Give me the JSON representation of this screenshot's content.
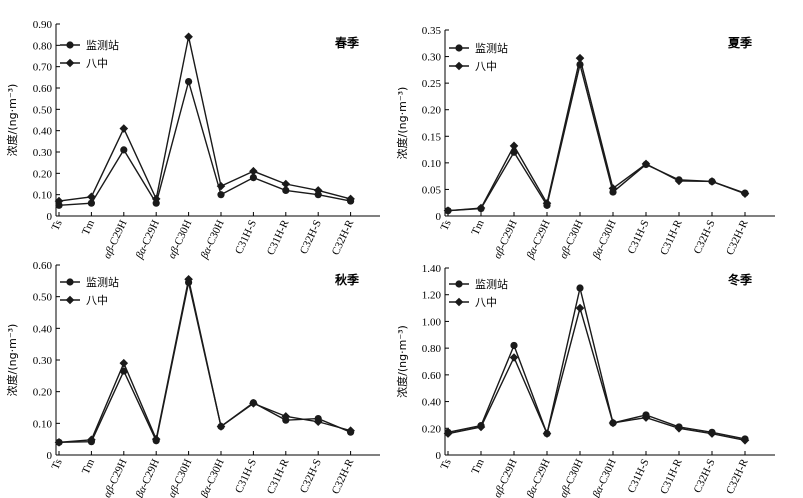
{
  "chart_data": [
    {
      "type": "line",
      "title": "春季",
      "ylabel": "浓度/(ng·m⁻³)",
      "ylim": [
        0,
        0.9
      ],
      "yticks": [
        "0",
        "0.10",
        "0.20",
        "0.30",
        "0.40",
        "0.50",
        "0.60",
        "0.70",
        "0.80",
        "0.90"
      ],
      "categories": [
        {
          "prefix": "",
          "rest": "Ts"
        },
        {
          "prefix": "",
          "rest": "Tm"
        },
        {
          "prefix": "αβ",
          "rest": "-C29H"
        },
        {
          "prefix": "βα",
          "rest": "-C29H"
        },
        {
          "prefix": "αβ",
          "rest": "-C30H"
        },
        {
          "prefix": "βα",
          "rest": "-C30H"
        },
        {
          "prefix": "",
          "rest": "C31H-S"
        },
        {
          "prefix": "",
          "rest": "C31H-R"
        },
        {
          "prefix": "",
          "rest": "C32H-S"
        },
        {
          "prefix": "",
          "rest": "C32H-R"
        }
      ],
      "series": [
        {
          "name": "监测站",
          "marker": "circle",
          "values": [
            0.05,
            0.06,
            0.31,
            0.06,
            0.63,
            0.1,
            0.18,
            0.12,
            0.1,
            0.07
          ]
        },
        {
          "name": "八中",
          "marker": "diamond",
          "values": [
            0.07,
            0.09,
            0.41,
            0.08,
            0.84,
            0.14,
            0.21,
            0.15,
            0.12,
            0.08
          ]
        }
      ]
    },
    {
      "type": "line",
      "title": "夏季",
      "ylabel": "浓度/(ng·m⁻³)",
      "ylim": [
        0,
        0.35
      ],
      "yticks": [
        "0",
        "0.05",
        "0.10",
        "0.15",
        "0.20",
        "0.25",
        "0.30",
        "0.35"
      ],
      "categories": [
        {
          "prefix": "",
          "rest": "Ts"
        },
        {
          "prefix": "",
          "rest": "Tm"
        },
        {
          "prefix": "αβ",
          "rest": "-C29H"
        },
        {
          "prefix": "βα",
          "rest": "-C29H"
        },
        {
          "prefix": "αβ",
          "rest": "-C30H"
        },
        {
          "prefix": "βα",
          "rest": "-C30H"
        },
        {
          "prefix": "",
          "rest": "C31H-S"
        },
        {
          "prefix": "",
          "rest": "C31H-R"
        },
        {
          "prefix": "",
          "rest": "C32H-S"
        },
        {
          "prefix": "",
          "rest": "C32H-R"
        }
      ],
      "series": [
        {
          "name": "监测站",
          "marker": "circle",
          "values": [
            0.01,
            0.014,
            0.12,
            0.02,
            0.285,
            0.045,
            0.097,
            0.068,
            0.065,
            0.043
          ]
        },
        {
          "name": "八中",
          "marker": "diamond",
          "values": [
            0.01,
            0.015,
            0.132,
            0.024,
            0.297,
            0.052,
            0.098,
            0.066,
            0.065,
            0.042
          ]
        }
      ]
    },
    {
      "type": "line",
      "title": "秋季",
      "ylabel": "浓度/(ng·m⁻³)",
      "ylim": [
        0,
        0.6
      ],
      "yticks": [
        "0",
        "0.10",
        "0.20",
        "0.30",
        "0.40",
        "0.50",
        "0.60"
      ],
      "categories": [
        {
          "prefix": "",
          "rest": "Ts"
        },
        {
          "prefix": "",
          "rest": "Tm"
        },
        {
          "prefix": "αβ",
          "rest": "-C29H"
        },
        {
          "prefix": "βα",
          "rest": "-C29H"
        },
        {
          "prefix": "αβ",
          "rest": "-C30H"
        },
        {
          "prefix": "βα",
          "rest": "-C30H"
        },
        {
          "prefix": "",
          "rest": "C31H-S"
        },
        {
          "prefix": "",
          "rest": "C31H-R"
        },
        {
          "prefix": "",
          "rest": "C32H-S"
        },
        {
          "prefix": "",
          "rest": "C32H-R"
        }
      ],
      "series": [
        {
          "name": "监测站",
          "marker": "circle",
          "values": [
            0.04,
            0.042,
            0.265,
            0.045,
            0.545,
            0.09,
            0.165,
            0.11,
            0.115,
            0.072
          ]
        },
        {
          "name": "八中",
          "marker": "diamond",
          "values": [
            0.04,
            0.048,
            0.29,
            0.05,
            0.555,
            0.09,
            0.163,
            0.122,
            0.105,
            0.077
          ]
        }
      ]
    },
    {
      "type": "line",
      "title": "冬季",
      "ylabel": "浓度/(ng·m⁻³)",
      "ylim": [
        0,
        1.4
      ],
      "yticks": [
        "0",
        "0.20",
        "0.40",
        "0.60",
        "0.80",
        "1.00",
        "1.20",
        "1.40"
      ],
      "categories": [
        {
          "prefix": "",
          "rest": "Ts"
        },
        {
          "prefix": "",
          "rest": "Tm"
        },
        {
          "prefix": "αβ",
          "rest": "-C29H"
        },
        {
          "prefix": "βα",
          "rest": "-C29H"
        },
        {
          "prefix": "αβ",
          "rest": "-C30H"
        },
        {
          "prefix": "βα",
          "rest": "-C30H"
        },
        {
          "prefix": "",
          "rest": "C31H-S"
        },
        {
          "prefix": "",
          "rest": "C31H-R"
        },
        {
          "prefix": "",
          "rest": "C32H-S"
        },
        {
          "prefix": "",
          "rest": "C32H-R"
        }
      ],
      "series": [
        {
          "name": "监测站",
          "marker": "circle",
          "values": [
            0.17,
            0.22,
            0.82,
            0.16,
            1.25,
            0.24,
            0.3,
            0.21,
            0.17,
            0.12
          ]
        },
        {
          "name": "八中",
          "marker": "diamond",
          "values": [
            0.16,
            0.21,
            0.73,
            0.16,
            1.1,
            0.24,
            0.28,
            0.2,
            0.16,
            0.11
          ]
        }
      ]
    }
  ]
}
